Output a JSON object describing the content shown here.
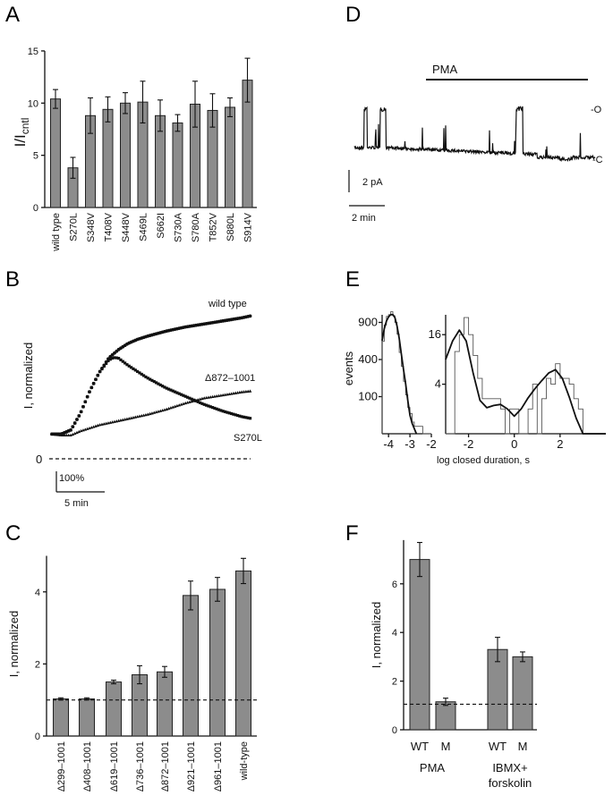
{
  "panel_labels": [
    "A",
    "B",
    "C",
    "D",
    "E",
    "F"
  ],
  "colors": {
    "bar_fill": "#8c8c8c",
    "ink": "#111111"
  },
  "chart_data": [
    {
      "panel": "A",
      "type": "bar",
      "ylabel": "I/I",
      "ylabel_sub": "cntl",
      "ylim": [
        0,
        15
      ],
      "yticks": [
        0,
        5,
        10,
        15
      ],
      "categories": [
        "wild type",
        "S270L",
        "S348V",
        "T408V",
        "S448V",
        "S469L",
        "S662I",
        "S730A",
        "S780A",
        "T852V",
        "S880L",
        "S914V"
      ],
      "values": [
        10.4,
        3.8,
        8.8,
        9.4,
        10.0,
        10.1,
        8.8,
        8.1,
        9.9,
        9.3,
        9.6,
        12.2
      ],
      "errors": [
        0.9,
        1.0,
        1.7,
        1.2,
        1.0,
        2.0,
        1.5,
        0.8,
        2.2,
        1.6,
        0.9,
        2.1
      ]
    },
    {
      "panel": "B",
      "type": "scatter",
      "ylabel": "I, normalized",
      "zero_label": "0",
      "scalebar_y": "100%",
      "scalebar_x": "5 min",
      "series": [
        {
          "name": "wild type",
          "marker": "circle",
          "x": [
            0,
            1,
            2,
            3,
            4,
            5,
            6,
            7,
            8,
            9,
            10,
            12,
            14,
            16,
            18,
            20,
            21
          ],
          "y": [
            120,
            120,
            140,
            220,
            330,
            420,
            490,
            530,
            560,
            580,
            595,
            620,
            640,
            655,
            670,
            685,
            695
          ]
        },
        {
          "name": "Δ872–1001",
          "marker": "triangle",
          "x": [
            0,
            1,
            2,
            3,
            5,
            8,
            10,
            12,
            14,
            16,
            18,
            20,
            21
          ],
          "y": [
            120,
            115,
            115,
            135,
            165,
            195,
            215,
            240,
            270,
            295,
            310,
            325,
            330
          ]
        },
        {
          "name": "S270L",
          "marker": "square",
          "x": [
            0,
            1,
            2,
            3,
            4,
            5,
            6,
            6.5,
            7,
            8,
            10,
            12,
            14,
            16,
            18,
            20,
            21
          ],
          "y": [
            120,
            120,
            140,
            220,
            330,
            420,
            480,
            492,
            490,
            455,
            395,
            345,
            305,
            265,
            232,
            205,
            196
          ]
        }
      ]
    },
    {
      "panel": "C",
      "type": "bar",
      "ylabel": "I, normalized",
      "ylim": [
        0,
        5
      ],
      "yticks": [
        0,
        2,
        4
      ],
      "reference_line": 1,
      "categories": [
        "Δ299–1001",
        "Δ408–1001",
        "Δ619–1001",
        "Δ736–1001",
        "Δ872–1001",
        "Δ921–1001",
        "Δ961–1001",
        "wild-type"
      ],
      "values": [
        1.03,
        1.03,
        1.5,
        1.7,
        1.78,
        3.9,
        4.07,
        4.58
      ],
      "errors": [
        0.03,
        0.03,
        0.05,
        0.25,
        0.15,
        0.4,
        0.33,
        0.35
      ]
    },
    {
      "panel": "D",
      "type": "line",
      "bar_label": "PMA",
      "open_label": "O",
      "closed_label": "C",
      "scalebar_y": "2 pA",
      "scalebar_x": "2 min"
    },
    {
      "panel": "E",
      "type": "bar",
      "ylabel": "events",
      "xlabel": "log closed duration, s",
      "yscale": "sqrt",
      "subplots": [
        {
          "xlim": [
            -4.3,
            -2
          ],
          "xticks": [
            -4,
            -3,
            -2
          ],
          "yticks": [
            100,
            400,
            900
          ],
          "hist_start": -4.3,
          "hist_width": 0.1,
          "hist": [
            620,
            860,
            1000,
            1030,
            1080,
            1010,
            900,
            720,
            480,
            330,
            200,
            110,
            50,
            30,
            10,
            4,
            4,
            4,
            4,
            0,
            0,
            0,
            0
          ],
          "fit_x": [
            -4.3,
            -4.2,
            -4.1,
            -4.0,
            -3.9,
            -3.8,
            -3.7,
            -3.6,
            -3.5,
            -3.4,
            -3.3,
            -3.2,
            -3.1,
            -3.0,
            -2.9,
            -2.8,
            -2.7
          ],
          "fit_y": [
            630,
            800,
            920,
            990,
            1030,
            1030,
            980,
            840,
            660,
            460,
            300,
            180,
            80,
            25,
            8,
            2,
            0
          ]
        },
        {
          "xlim": [
            -3,
            4
          ],
          "xticks": [
            -2,
            0,
            2
          ],
          "yticks": [
            4,
            16
          ],
          "hist_start": -3,
          "hist_width": 0.2,
          "hist": [
            0,
            0,
            11,
            16,
            22,
            16,
            10,
            5,
            2,
            2,
            2,
            2,
            1,
            0,
            1,
            1,
            0,
            0,
            1,
            4,
            0,
            2,
            5,
            4,
            8,
            5,
            5,
            4,
            2,
            1,
            0
          ],
          "fit_x": [
            -3,
            -2.7,
            -2.4,
            -2.1,
            -1.8,
            -1.5,
            -1.2,
            -0.9,
            -0.6,
            -0.3,
            0,
            0.3,
            0.6,
            0.9,
            1.2,
            1.5,
            1.8,
            2.1,
            2.4,
            2.7,
            3.0,
            4.0
          ],
          "fit_y": [
            9,
            14,
            17.5,
            14,
            6,
            1.8,
            1.1,
            1.3,
            1.4,
            1.0,
            0.5,
            1.0,
            2.1,
            3.3,
            4.6,
            6,
            6.7,
            5,
            2.2,
            0.4,
            0,
            0
          ]
        }
      ]
    },
    {
      "panel": "F",
      "type": "bar",
      "ylabel": "I, normalized",
      "ylim": [
        0,
        7.8
      ],
      "yticks": [
        0,
        2,
        4,
        6
      ],
      "reference_line": 1.05,
      "categories": [
        "WT",
        "M",
        "WT",
        "M"
      ],
      "groups": [
        "PMA",
        "IBMX+",
        "forskolin"
      ],
      "values": [
        7.0,
        1.15,
        3.3,
        3.0
      ],
      "errors": [
        0.7,
        0.15,
        0.5,
        0.2
      ]
    }
  ]
}
